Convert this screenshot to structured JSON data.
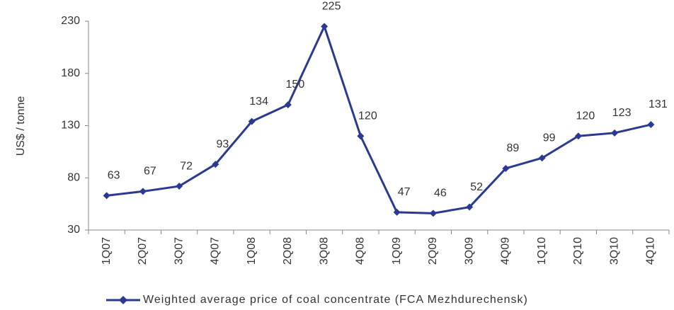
{
  "chart_data": {
    "type": "line",
    "y_label": "US$ / tonne",
    "categories": [
      "1Q07",
      "2Q07",
      "3Q07",
      "4Q07",
      "1Q08",
      "2Q08",
      "3Q08",
      "4Q08",
      "1Q09",
      "2Q09",
      "3Q09",
      "4Q09",
      "1Q10",
      "2Q10",
      "3Q10",
      "4Q10"
    ],
    "series": [
      {
        "name": "Weighted average price of coal concentrate (FCA Mezhdurechensk)",
        "color": "#2b3990",
        "values": [
          63,
          67,
          72,
          93,
          134,
          150,
          225,
          120,
          47,
          46,
          52,
          89,
          99,
          120,
          123,
          131
        ]
      }
    ],
    "ylim": [
      30,
      230
    ],
    "yticks": [
      30,
      80,
      130,
      180,
      230
    ],
    "grid": false,
    "legend": "bottom"
  }
}
